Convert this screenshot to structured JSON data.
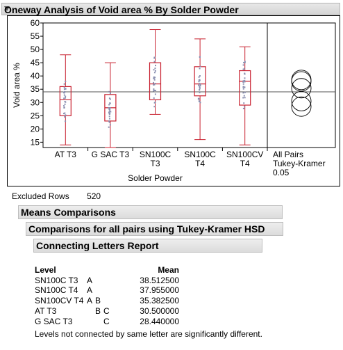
{
  "title": "Oneway Analysis of Void area % By Solder Powder",
  "excluded": {
    "label": "Excluded Rows",
    "value": "520"
  },
  "sections": {
    "means": "Means Comparisons",
    "tukey": "Comparisons for all pairs using Tukey-Kramer HSD",
    "letters": "Connecting Letters Report"
  },
  "report": {
    "headers": {
      "level": "Level",
      "mean": "Mean"
    },
    "rows": [
      {
        "level": "SN100C T3",
        "l1": "A",
        "l2": "",
        "l3": "",
        "mean": "38.512500"
      },
      {
        "level": "SN100C T4",
        "l1": "A",
        "l2": "",
        "l3": "",
        "mean": "37.955000"
      },
      {
        "level": "SN100CV T4",
        "l1": "A",
        "l2": "B",
        "l3": "",
        "mean": "35.382500"
      },
      {
        "level": "AT T3",
        "l1": "",
        "l2": "B",
        "l3": "C",
        "mean": "30.500000"
      },
      {
        "level": "G SAC T3",
        "l1": "",
        "l2": "",
        "l3": "C",
        "mean": "28.440000"
      }
    ],
    "note": "Levels not connected by same letter are significantly different."
  },
  "chart_data": {
    "type": "box",
    "ylabel": "Void area %",
    "xlabel": "Solder Powder",
    "ylim": [
      13,
      60
    ],
    "yticks": [
      15,
      20,
      25,
      30,
      35,
      40,
      45,
      50,
      55,
      60
    ],
    "grand_mean": 34,
    "groups": [
      {
        "label": [
          "AT T3"
        ],
        "min": 14,
        "q1": 25,
        "median": 31,
        "q3": 36,
        "max": 48,
        "mean": 30.5
      },
      {
        "label": [
          "G SAC T3"
        ],
        "min": 13,
        "q1": 23,
        "median": 28,
        "q3": 33,
        "max": 45,
        "mean": 28.44
      },
      {
        "label": [
          "SN100C",
          "T3"
        ],
        "min": 25.5,
        "q1": 31,
        "median": 37,
        "q3": 45,
        "max": 57.5,
        "mean": 38.5125
      },
      {
        "label": [
          "SN100C",
          "T4"
        ],
        "min": 16,
        "q1": 32.5,
        "median": 37,
        "q3": 43.5,
        "max": 54,
        "mean": 37.955
      },
      {
        "label": [
          "SN100CV",
          "T4"
        ],
        "min": 14,
        "q1": 29,
        "median": 38,
        "q3": 42,
        "max": 51,
        "mean": 35.3825
      }
    ],
    "side_panel": {
      "label": [
        "All Pairs",
        "Tukey-Kramer",
        "0.05"
      ]
    },
    "colors": {
      "box": "#c8202f",
      "points": "#8a8fb0",
      "axis": "#000000",
      "mean_line": "#555555"
    }
  }
}
